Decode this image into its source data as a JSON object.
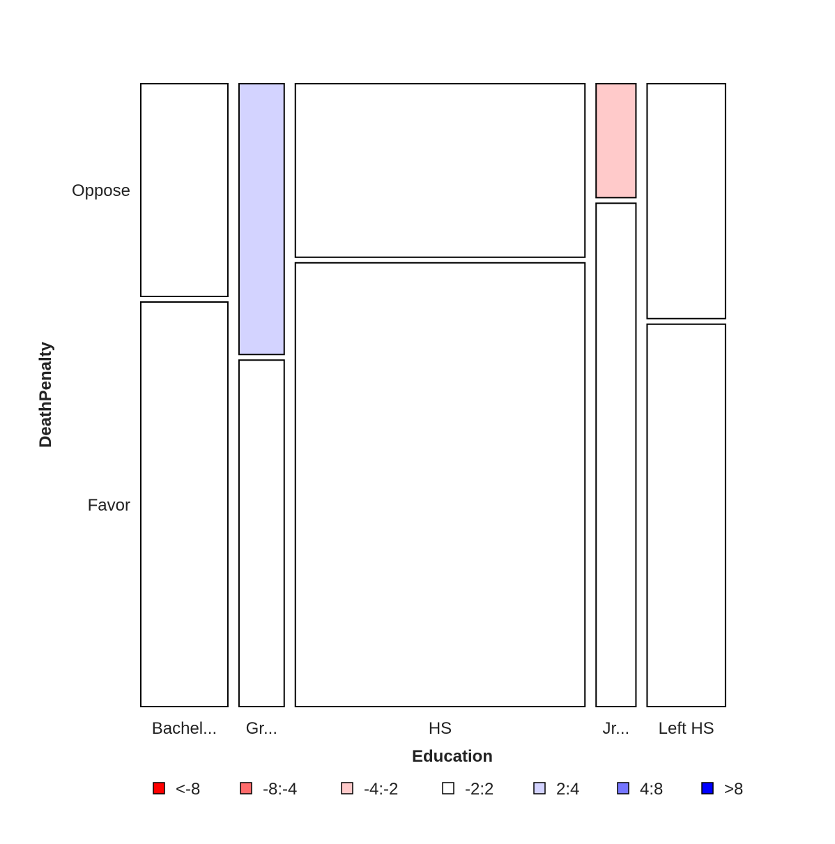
{
  "chart_data": {
    "type": "mosaic",
    "xlabel": "Education",
    "ylabel": "DeathPenalty",
    "x_categories": [
      {
        "label": "Bachel...",
        "proportion": 0.1505
      },
      {
        "label": "Gr...",
        "proportion": 0.0781
      },
      {
        "label": "HS",
        "proportion": 0.5006
      },
      {
        "label": "Jr...",
        "proportion": 0.0689
      },
      {
        "label": "Left HS",
        "proportion": 0.1355
      }
    ],
    "y_categories": [
      "Oppose",
      "Favor"
    ],
    "oppose_fraction": [
      0.3446,
      0.4387,
      0.2811,
      0.1846,
      0.3805
    ],
    "residual_bins": [
      [
        "-2:2",
        "-2:2"
      ],
      [
        "2:4",
        "-2:2"
      ],
      [
        "-2:2",
        "-2:2"
      ],
      [
        "-4:-2",
        "-2:2"
      ],
      [
        "-2:2",
        "-2:2"
      ]
    ],
    "legend": [
      {
        "label": "<-8",
        "color": "#ff0000"
      },
      {
        "label": "-8:-4",
        "color": "#ff6b6b"
      },
      {
        "label": "-4:-2",
        "color": "#ffcaca"
      },
      {
        "label": "-2:2",
        "color": "#ffffff"
      },
      {
        "label": "2:4",
        "color": "#d3d3ff"
      },
      {
        "label": "4:8",
        "color": "#7575ff"
      },
      {
        "label": ">8",
        "color": "#0000ff"
      }
    ],
    "legend_position": "bottom"
  }
}
